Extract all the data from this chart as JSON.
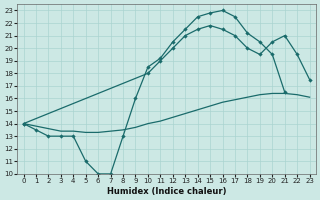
{
  "xlabel": "Humidex (Indice chaleur)",
  "bg_color": "#cce8e4",
  "grid_color": "#aad4d0",
  "line_color": "#1a6b6b",
  "xlim": [
    -0.5,
    23.5
  ],
  "ylim": [
    10,
    23.5
  ],
  "xticks": [
    0,
    1,
    2,
    3,
    4,
    5,
    6,
    7,
    8,
    9,
    10,
    11,
    12,
    13,
    14,
    15,
    16,
    17,
    18,
    19,
    20,
    21,
    22,
    23
  ],
  "yticks": [
    10,
    11,
    12,
    13,
    14,
    15,
    16,
    17,
    18,
    19,
    20,
    21,
    22,
    23
  ],
  "curve1_x": [
    0,
    1,
    2,
    3,
    4,
    5,
    6,
    7,
    8,
    9,
    10,
    11,
    12,
    13,
    14,
    15,
    16,
    17,
    18,
    19,
    20,
    21
  ],
  "curve1_y": [
    14,
    13.5,
    13,
    13,
    13,
    11,
    10,
    10,
    13,
    16,
    18.5,
    19.2,
    20.5,
    21.5,
    22.5,
    22.8,
    23,
    22.5,
    21.2,
    20.5,
    19.5,
    16.5
  ],
  "curve2_x": [
    0,
    10,
    11,
    12,
    13,
    14,
    15,
    16,
    17,
    18,
    19,
    20,
    21,
    22,
    23
  ],
  "curve2_y": [
    14,
    18,
    19,
    20,
    21,
    21.5,
    21.8,
    21.5,
    21,
    20,
    19.5,
    20.5,
    21,
    19.5,
    17.5
  ],
  "curve3_x": [
    0,
    1,
    2,
    3,
    4,
    5,
    6,
    7,
    8,
    9,
    10,
    11,
    12,
    13,
    14,
    15,
    16,
    17,
    18,
    19,
    20,
    21,
    22,
    23
  ],
  "curve3_y": [
    14,
    13.8,
    13.6,
    13.4,
    13.4,
    13.3,
    13.3,
    13.4,
    13.5,
    13.7,
    14.0,
    14.2,
    14.5,
    14.8,
    15.1,
    15.4,
    15.7,
    15.9,
    16.1,
    16.3,
    16.4,
    16.4,
    16.3,
    16.1
  ]
}
